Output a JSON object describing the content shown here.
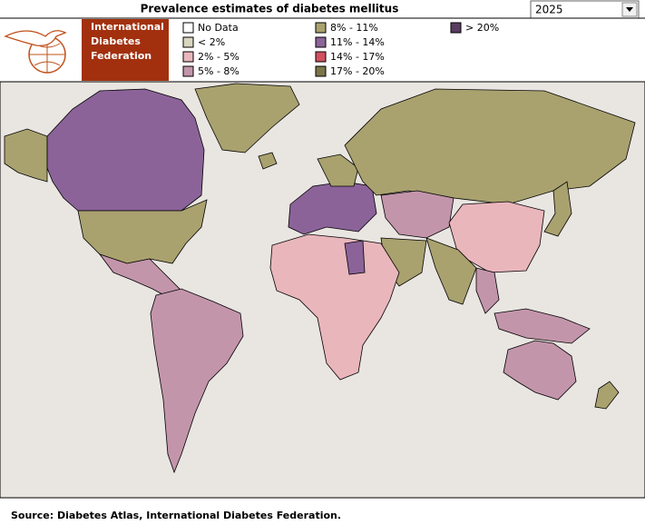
{
  "header": {
    "title": "Prevalence estimates of diabetes mellitus",
    "year": "2025",
    "logo": [
      "International",
      "Diabetes",
      "Federation"
    ]
  },
  "legend": [
    {
      "label": "No Data",
      "color": "#ffffff"
    },
    {
      "label": "< 2%",
      "color": "#d9d6bf"
    },
    {
      "label": "2% - 5%",
      "color": "#e9b6bc"
    },
    {
      "label": "5% - 8%",
      "color": "#c395ab"
    },
    {
      "label": "8% - 11%",
      "color": "#a9a26f"
    },
    {
      "label": "11% - 14%",
      "color": "#8b6399"
    },
    {
      "label": "14% - 17%",
      "color": "#d2505f"
    },
    {
      "label": "17% - 20%",
      "color": "#7b7548"
    },
    {
      "label": "> 20%",
      "color": "#5b3c61"
    }
  ],
  "footer": {
    "source": "Source: Diabetes Atlas, International Diabetes Federation."
  }
}
